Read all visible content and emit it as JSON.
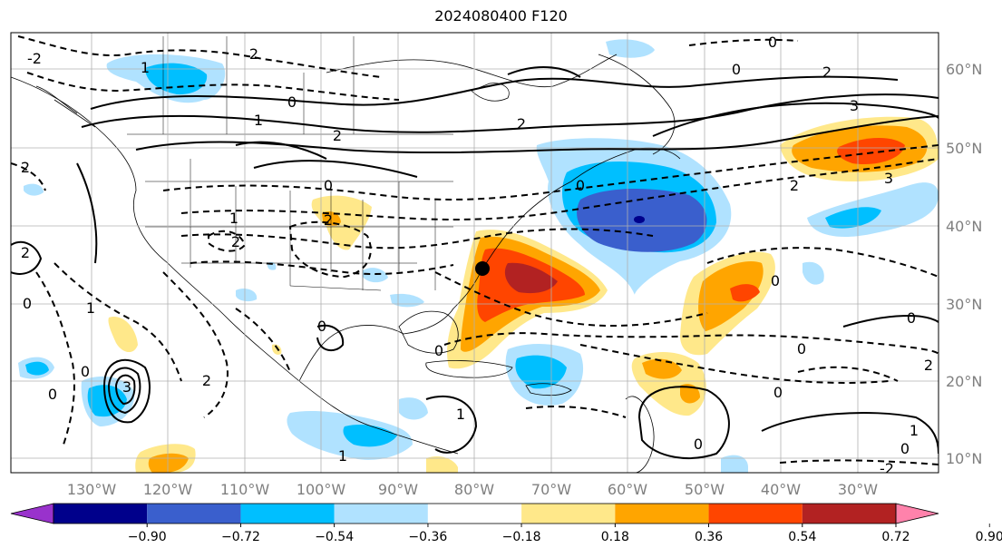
{
  "title": "2024080400 F120",
  "map": {
    "lon_labels": [
      "130°W",
      "120°W",
      "110°W",
      "100°W",
      "90°W",
      "80°W",
      "70°W",
      "60°W",
      "50°W",
      "40°W",
      "30°W"
    ],
    "lat_labels": [
      "60°N",
      "50°N",
      "40°N",
      "30°N",
      "20°N",
      "10°N"
    ],
    "contour_labels": [
      "-2",
      "1",
      "2",
      "0",
      "1",
      "2",
      "2",
      "0",
      "2",
      "3",
      "3",
      "2",
      "0",
      "0",
      "0",
      "2",
      "2",
      "0",
      "0",
      "0",
      "0",
      "3",
      "2",
      "0",
      "0",
      "0",
      "1",
      "1",
      "2",
      "2",
      "0",
      "1",
      "0",
      "1",
      "0",
      "-2",
      "0",
      "2",
      "1"
    ]
  },
  "colorbar": {
    "tick_labels": [
      "−0.90",
      "−0.72",
      "−0.54",
      "−0.36",
      "−0.18",
      "0.18",
      "0.36",
      "0.54",
      "0.72",
      "0.90"
    ],
    "colors": [
      "#9932cc",
      "#00008b",
      "#3a5fcd",
      "#00bfff",
      "#b0e2ff",
      "#ffffff",
      "#ffe88a",
      "#ffa500",
      "#ff4500",
      "#b22222",
      "#ff82ab"
    ]
  }
}
